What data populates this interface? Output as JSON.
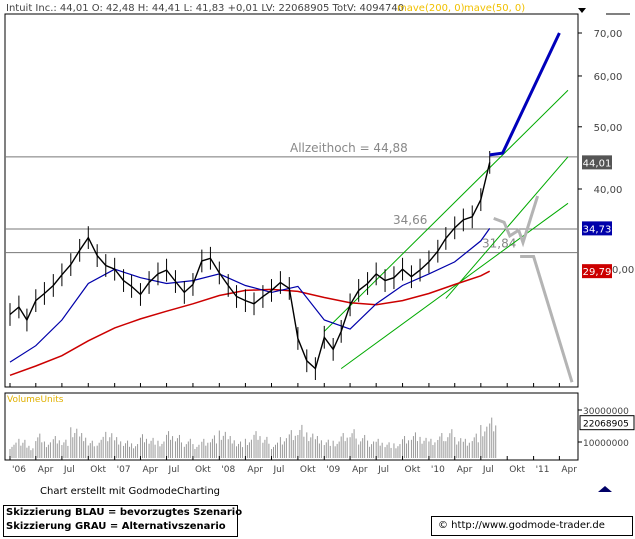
{
  "header": {
    "info": "Intuit Inc.: 44,01  O: 42,48  H: 44,41  L: 41,83  +0,01  LV: 22068905  TotV: 4094740",
    "ma200_label": "mave(200, 0)",
    "ma50_label": "mave(50, 0)"
  },
  "footer": {
    "credit": "Chart erstellt mit GodmodeCharting",
    "blue_scenario": "Skizzierung BLAU = bevorzugtes Szenario",
    "gray_scenario": "Skizzierung GRAU = Alternativszenario",
    "copyright": "© http://www.godmode-trader.de"
  },
  "colors": {
    "price": "#000000",
    "ma200": "#cc0000",
    "ma50": "#0000aa",
    "channel": "#00aa00",
    "scenario_blue": "#0000bb",
    "scenario_gray": "#b4b4b4",
    "level_line": "#777777",
    "badge_current": "#555555",
    "badge_ma50": "#0000aa",
    "badge_ma200": "#cc0000"
  },
  "chart_data": {
    "type": "line",
    "title": "",
    "xlabel": "",
    "ylabel": "",
    "x_tick_labels": [
      "'06",
      "Apr",
      "Jul",
      "Okt",
      "'07",
      "Apr",
      "Jul",
      "Okt",
      "'08",
      "Apr",
      "Jul",
      "Okt",
      "'09",
      "Apr",
      "Jul",
      "Okt",
      "'10",
      "Apr",
      "Jul",
      "Okt",
      "'11",
      "Apr"
    ],
    "y_ticks": [
      {
        "value": 40,
        "label": "40,00"
      },
      {
        "value": 50,
        "label": "50,00"
      },
      {
        "value": 60,
        "label": "60,00"
      },
      {
        "value": 70,
        "label": "70,00"
      }
    ],
    "y_tick_partial": {
      "value": 30,
      "label": "0,00"
    },
    "ylim": [
      19,
      73
    ],
    "scale": "log",
    "series_price": {
      "name": "Intuit Inc.",
      "x": [
        "2006-01-01",
        "2006-02-01",
        "2006-03-01",
        "2006-04-01",
        "2006-05-01",
        "2006-06-01",
        "2006-07-01",
        "2006-08-01",
        "2006-09-01",
        "2006-10-01",
        "2006-11-01",
        "2006-12-01",
        "2007-01-01",
        "2007-02-01",
        "2007-03-01",
        "2007-04-01",
        "2007-05-01",
        "2007-06-01",
        "2007-07-01",
        "2007-08-01",
        "2007-09-01",
        "2007-10-01",
        "2007-11-01",
        "2007-12-01",
        "2008-01-01",
        "2008-02-01",
        "2008-03-01",
        "2008-04-01",
        "2008-05-01",
        "2008-06-01",
        "2008-07-01",
        "2008-08-01",
        "2008-09-01",
        "2008-10-01",
        "2008-11-01",
        "2008-12-01",
        "2009-01-01",
        "2009-02-01",
        "2009-03-01",
        "2009-04-01",
        "2009-05-01",
        "2009-06-01",
        "2009-07-01",
        "2009-08-01",
        "2009-09-01",
        "2009-10-01",
        "2009-11-01",
        "2009-12-01",
        "2010-01-01",
        "2010-02-01",
        "2010-03-01",
        "2010-04-01",
        "2010-05-01",
        "2010-06-01",
        "2010-07-01",
        "2010-08-01"
      ],
      "y": [
        25.5,
        26.2,
        25.0,
        26.8,
        27.5,
        28.3,
        29.4,
        30.5,
        32.1,
        33.6,
        31.5,
        30.4,
        30.0,
        28.8,
        28.2,
        27.4,
        28.6,
        29.5,
        29.9,
        28.7,
        27.6,
        28.4,
        30.9,
        31.2,
        29.6,
        28.3,
        27.2,
        26.8,
        26.5,
        27.2,
        27.8,
        28.6,
        28.0,
        23.4,
        21.6,
        21.0,
        23.5,
        22.5,
        24.0,
        26.4,
        27.8,
        28.5,
        29.5,
        28.8,
        29.1,
        30.0,
        29.2,
        29.9,
        30.8,
        32.0,
        33.5,
        34.8,
        35.8,
        36.2,
        38.5,
        44.01
      ]
    },
    "series_ma200": {
      "name": "mave(200, 0)",
      "x": [
        "2006-01-01",
        "2006-04-01",
        "2006-07-01",
        "2006-10-01",
        "2007-01-01",
        "2007-04-01",
        "2007-07-01",
        "2007-10-01",
        "2008-01-01",
        "2008-04-01",
        "2008-07-01",
        "2008-10-01",
        "2009-01-01",
        "2009-04-01",
        "2009-07-01",
        "2009-10-01",
        "2010-01-01",
        "2010-04-01",
        "2010-07-01",
        "2010-08-01"
      ],
      "y": [
        20.5,
        21.2,
        22.0,
        23.2,
        24.3,
        25.1,
        25.8,
        26.5,
        27.3,
        27.8,
        27.9,
        27.7,
        27.1,
        26.6,
        26.4,
        26.8,
        27.5,
        28.4,
        29.3,
        29.79
      ]
    },
    "series_ma50": {
      "name": "mave(50, 0)",
      "x": [
        "2006-01-01",
        "2006-04-01",
        "2006-07-01",
        "2006-10-01",
        "2007-01-01",
        "2007-04-01",
        "2007-07-01",
        "2007-10-01",
        "2008-01-01",
        "2008-04-01",
        "2008-07-01",
        "2008-10-01",
        "2009-01-01",
        "2009-04-01",
        "2009-07-01",
        "2009-10-01",
        "2010-01-01",
        "2010-04-01",
        "2010-07-01",
        "2010-08-01"
      ],
      "y": [
        21.5,
        22.8,
        25.0,
        28.5,
        30.0,
        29.1,
        28.5,
        28.8,
        29.5,
        28.3,
        27.6,
        28.2,
        25.0,
        24.2,
        26.5,
        28.3,
        29.5,
        30.8,
        33.2,
        34.73
      ]
    },
    "levels": [
      {
        "value": 44.88,
        "label": "Allzeithoch  =  44,88"
      },
      {
        "value": 34.66,
        "label": "34,66"
      },
      {
        "value": 31.84,
        "label": "31,84"
      }
    ],
    "badges": [
      {
        "value": 44.01,
        "label": "44,01",
        "kind": "current"
      },
      {
        "value": 34.73,
        "label": "34,73",
        "kind": "ma50"
      },
      {
        "value": 29.79,
        "label": "29,79",
        "kind": "ma200"
      }
    ],
    "volume": {
      "name": "VolumeUnits",
      "tick_labels": [
        "30000000",
        "10000000"
      ],
      "last_label": "22068905",
      "values": [
        8,
        11,
        7,
        14,
        9,
        12,
        10,
        16,
        13,
        9,
        11,
        15,
        12,
        10,
        8,
        13,
        11,
        9,
        14,
        12,
        10,
        8,
        11,
        13,
        15,
        12,
        9,
        10,
        14,
        11,
        8,
        12,
        16,
        19,
        14,
        12,
        10,
        9,
        13,
        15,
        12,
        10,
        11,
        9,
        8,
        12,
        14,
        11,
        10,
        13,
        15,
        12,
        11,
        14,
        18,
        22.07
      ]
    }
  }
}
